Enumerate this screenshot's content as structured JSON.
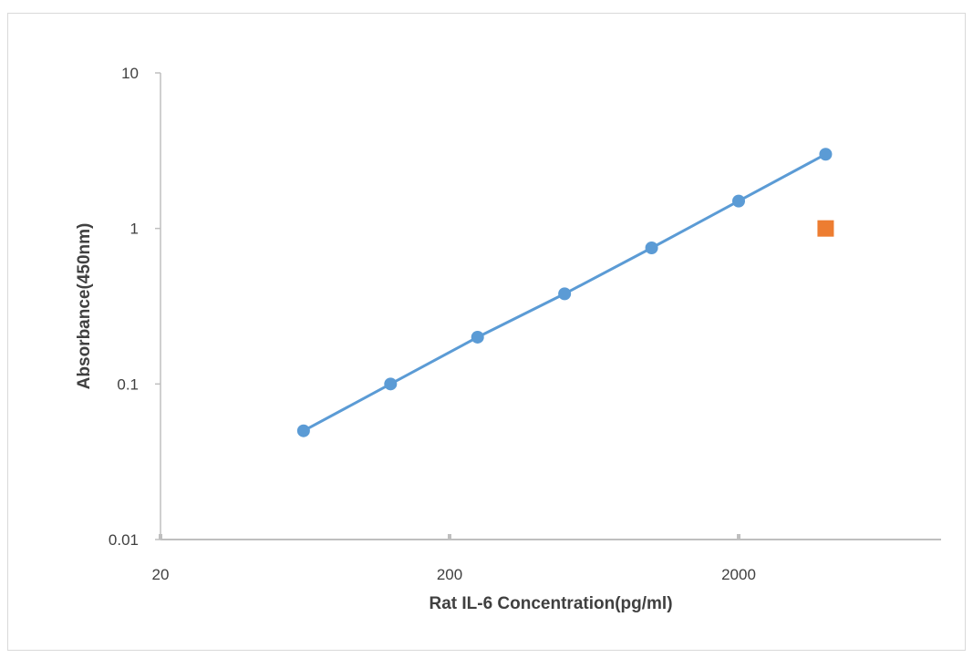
{
  "chart_data": {
    "type": "scatter",
    "xlabel": "Rat IL-6 Concentration(pg/ml)",
    "ylabel": "Absorbance(450nm)",
    "xscale": "log",
    "yscale": "log",
    "xlim": [
      20,
      20000
    ],
    "ylim": [
      0.01,
      10
    ],
    "x_ticks": [
      {
        "value": 20,
        "label": "20"
      },
      {
        "value": 200,
        "label": "200"
      },
      {
        "value": 2000,
        "label": "2000"
      }
    ],
    "y_ticks": [
      {
        "value": 0.01,
        "label": "0.01"
      },
      {
        "value": 0.1,
        "label": "0.1"
      },
      {
        "value": 1,
        "label": "1"
      },
      {
        "value": 10,
        "label": "10"
      }
    ],
    "grid": false,
    "legend": "none",
    "series": [
      {
        "marker": "circle",
        "color": "#5b9bd5",
        "line": true,
        "x": [
          62.5,
          125,
          250,
          500,
          1000,
          2000,
          4000
        ],
        "y": [
          0.05,
          0.1,
          0.2,
          0.38,
          0.75,
          1.5,
          3.0
        ]
      },
      {
        "marker": "square",
        "color": "#ed7d31",
        "line": false,
        "x": [
          4000
        ],
        "y": [
          1.0
        ]
      }
    ]
  }
}
